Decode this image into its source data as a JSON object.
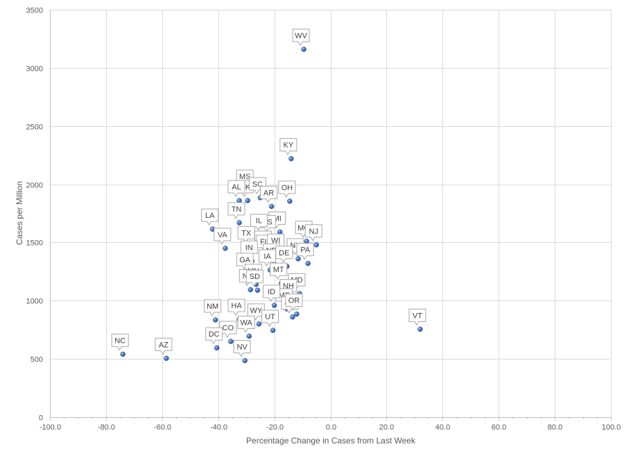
{
  "chart_data": {
    "type": "scatter",
    "title": "",
    "xlabel": "Percentage Change  in Cases from Last Week",
    "ylabel": "Cases per Million",
    "xlim": [
      -100,
      100
    ],
    "ylim": [
      0,
      3500
    ],
    "x_ticks": [
      -100,
      -80,
      -60,
      -40,
      -20,
      0,
      20,
      40,
      60,
      80,
      100
    ],
    "x_tick_labels": [
      "-100.0",
      "-80.0",
      "-60.0",
      "-40.0",
      "-20.0",
      "0.0",
      "20.0",
      "40.0",
      "60.0",
      "80.0",
      "100.0"
    ],
    "y_ticks": [
      0,
      500,
      1000,
      1500,
      2000,
      2500,
      3000,
      3500
    ],
    "y_tick_labels": [
      "0",
      "500",
      "1000",
      "1500",
      "2000",
      "2500",
      "3000",
      "3500"
    ],
    "grid": true,
    "legend": "none",
    "colors": {
      "marker": "#4472c4",
      "grid": "#d9d9d9",
      "axis": "#bfbfbf"
    },
    "points": [
      {
        "label": "WV",
        "x": -9.5,
        "y": 3160
      },
      {
        "label": "KY",
        "x": -14.0,
        "y": 2220
      },
      {
        "label": "MS",
        "x": -29.5,
        "y": 1950
      },
      {
        "label": "OK",
        "x": -29.5,
        "y": 1860
      },
      {
        "label": "SC",
        "x": -25.0,
        "y": 1885
      },
      {
        "label": "AL",
        "x": -32.5,
        "y": 1860
      },
      {
        "label": "AR",
        "x": -21.0,
        "y": 1810
      },
      {
        "label": "OH",
        "x": -14.5,
        "y": 1855
      },
      {
        "label": "TN",
        "x": -32.5,
        "y": 1670
      },
      {
        "label": "LA",
        "x": -42.0,
        "y": 1615
      },
      {
        "label": "VA",
        "x": -37.5,
        "y": 1450
      },
      {
        "label": "MI",
        "x": -18.0,
        "y": 1590
      },
      {
        "label": "KS",
        "x": -21.5,
        "y": 1560
      },
      {
        "label": "IL",
        "x": -24.5,
        "y": 1570
      },
      {
        "label": "MO",
        "x": -8.5,
        "y": 1510
      },
      {
        "label": "NJ",
        "x": -5.0,
        "y": 1480
      },
      {
        "label": "TX",
        "x": -29.0,
        "y": 1465
      },
      {
        "label": "RI",
        "x": -23.0,
        "y": 1425
      },
      {
        "label": "FL",
        "x": -22.5,
        "y": 1390
      },
      {
        "label": "WI",
        "x": -18.5,
        "y": 1400
      },
      {
        "label": "NY",
        "x": -11.5,
        "y": 1360
      },
      {
        "label": "PA",
        "x": -8.0,
        "y": 1320
      },
      {
        "label": "IN",
        "x": -28.0,
        "y": 1340
      },
      {
        "label": "ND",
        "x": -20.0,
        "y": 1315
      },
      {
        "label": "DE",
        "x": -15.5,
        "y": 1295
      },
      {
        "label": "GA",
        "x": -29.5,
        "y": 1235
      },
      {
        "label": "IA",
        "x": -21.5,
        "y": 1265
      },
      {
        "label": "MN",
        "x": -26.5,
        "y": 1140
      },
      {
        "label": "NE",
        "x": -28.5,
        "y": 1095
      },
      {
        "label": "SD",
        "x": -26.0,
        "y": 1090
      },
      {
        "label": "MT",
        "x": -17.5,
        "y": 1150
      },
      {
        "label": "MD",
        "x": -11.0,
        "y": 1060
      },
      {
        "label": "NH",
        "x": -14.0,
        "y": 1010
      },
      {
        "label": "ME",
        "x": -15.5,
        "y": 930
      },
      {
        "label": "ID",
        "x": -20.0,
        "y": 960
      },
      {
        "label": "CT",
        "x": -13.5,
        "y": 860
      },
      {
        "label": "OR",
        "x": -12.0,
        "y": 885
      },
      {
        "label": "NM",
        "x": -41.0,
        "y": 835
      },
      {
        "label": "HA",
        "x": -32.5,
        "y": 840
      },
      {
        "label": "WY",
        "x": -25.5,
        "y": 800
      },
      {
        "label": "UT",
        "x": -20.5,
        "y": 745
      },
      {
        "label": "WA",
        "x": -29.0,
        "y": 695
      },
      {
        "label": "CO",
        "x": -35.5,
        "y": 650
      },
      {
        "label": "DC",
        "x": -40.5,
        "y": 595
      },
      {
        "label": "NV",
        "x": -30.5,
        "y": 485
      },
      {
        "label": "NC",
        "x": -74.0,
        "y": 540
      },
      {
        "label": "AZ",
        "x": -58.5,
        "y": 505
      },
      {
        "label": "VT",
        "x": 32.0,
        "y": 755
      }
    ]
  }
}
